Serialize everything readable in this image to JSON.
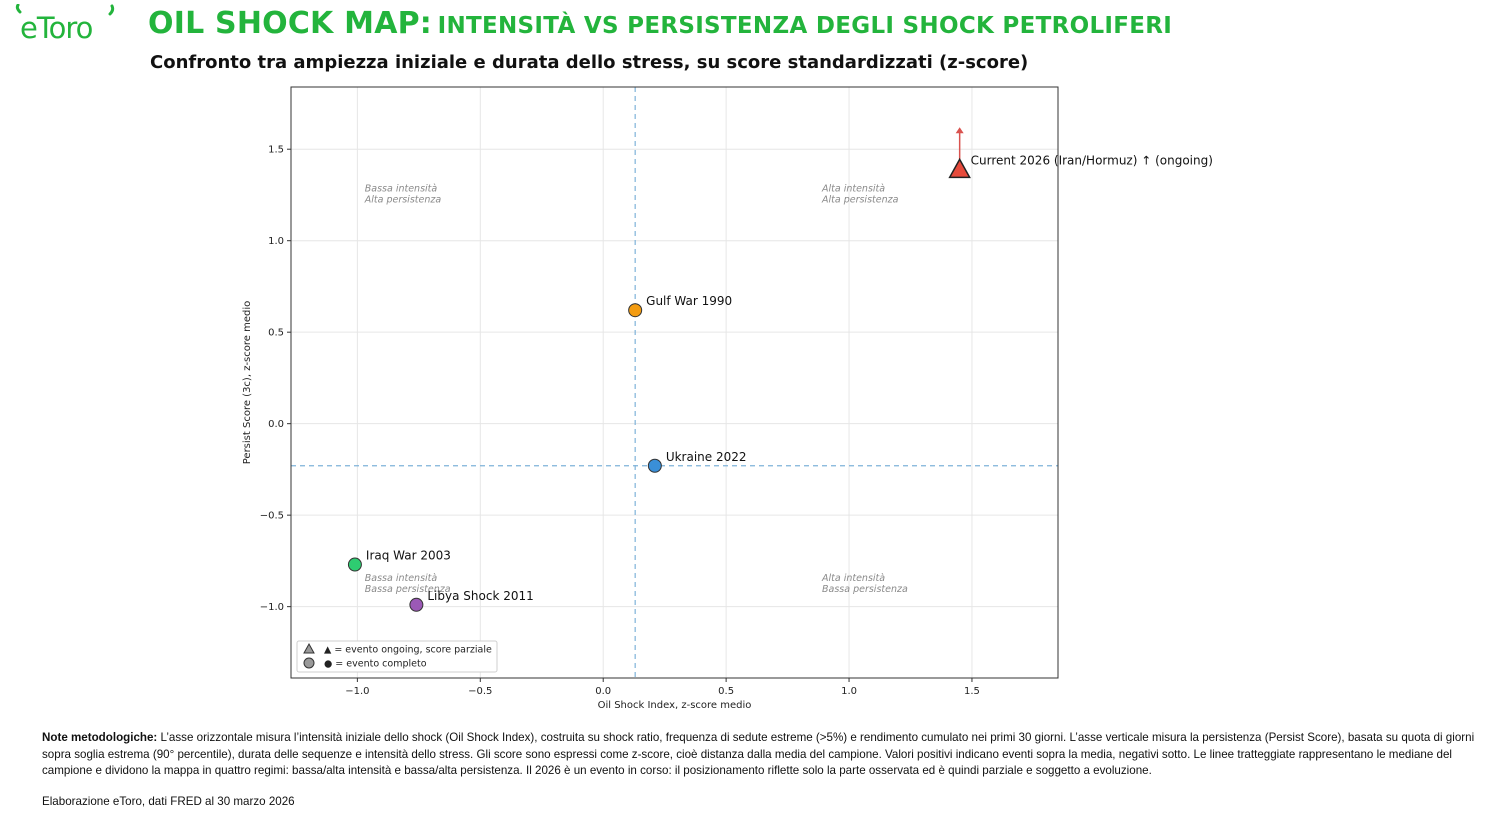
{
  "header": {
    "brand": "eToro",
    "title_main": "OIL SHOCK MAP:",
    "title_rest": "INTENSITÀ VS PERSISTENZA DEGLI SHOCK PETROLIFERI",
    "subtitle": "Confronto tra ampiezza iniziale e durata dello stress, su score standardizzati (z-score)"
  },
  "colors": {
    "brand_green": "#23b43c",
    "median_line": "#7fb2d9",
    "grid": "#e6e6e6",
    "arrow": "#d9534f"
  },
  "chart_data": {
    "type": "scatter",
    "title": "",
    "xlabel": "Oil Shock Index, z-score medio",
    "ylabel": "Persist Score (3c), z-score medio",
    "xlim": [
      -1.27,
      1.85
    ],
    "ylim": [
      -1.39,
      1.84
    ],
    "xticks": [
      -1.0,
      -0.5,
      0.0,
      0.5,
      1.0,
      1.5
    ],
    "xtick_labels": [
      "−1.0",
      "−0.5",
      "0.0",
      "0.5",
      "1.0",
      "1.5"
    ],
    "yticks": [
      -1.0,
      -0.5,
      0.0,
      0.5,
      1.0,
      1.5
    ],
    "ytick_labels": [
      "−1.0",
      "−0.5",
      "0.0",
      "0.5",
      "1.0",
      "1.5"
    ],
    "grid": true,
    "median_x": 0.13,
    "median_y": -0.23,
    "points": [
      {
        "label": "Current 2026 (Iran/Hormuz) ↑ (ongoing)",
        "x": 1.45,
        "y": 1.39,
        "marker": "triangle",
        "color": "#e64b3c",
        "status": "ongoing",
        "arrow_to_y": 1.62
      },
      {
        "label": "Gulf War 1990",
        "x": 0.13,
        "y": 0.62,
        "marker": "circle",
        "color": "#f39c12",
        "status": "complete"
      },
      {
        "label": "Ukraine 2022",
        "x": 0.21,
        "y": -0.23,
        "marker": "circle",
        "color": "#3a8fd8",
        "status": "complete"
      },
      {
        "label": "Iraq War 2003",
        "x": -1.01,
        "y": -0.77,
        "marker": "circle",
        "color": "#2ecc71",
        "status": "complete"
      },
      {
        "label": "Libya Shock 2011",
        "x": -0.76,
        "y": -0.99,
        "marker": "circle",
        "color": "#9b59b6",
        "status": "complete"
      }
    ],
    "quadrant_labels": [
      {
        "line1": "Bassa intensità",
        "line2": "Alta persistenza",
        "x": -0.97,
        "y": 1.27
      },
      {
        "line1": "Alta intensità",
        "line2": "Alta persistenza",
        "x": 0.89,
        "y": 1.27
      },
      {
        "line1": "Bassa intensità",
        "line2": "Bassa persistenza",
        "x": -0.97,
        "y": -0.86
      },
      {
        "line1": "Alta intensità",
        "line2": "Bassa persistenza",
        "x": 0.89,
        "y": -0.86
      }
    ],
    "legend": {
      "position": "lower-left",
      "entries": [
        {
          "marker": "triangle",
          "text": "▲ = evento ongoing, score parziale"
        },
        {
          "marker": "circle",
          "text": "● = evento completo"
        }
      ]
    }
  },
  "notes": {
    "heading": "Note metodologiche:",
    "body": "L’asse orizzontale misura l’intensità iniziale dello shock (Oil Shock Index), costruita su shock ratio, frequenza di sedute estreme (>5%) e rendimento cumulato nei primi 30 giorni. L’asse verticale misura la persistenza (Persist Score), basata su quota di giorni sopra soglia estrema (90° percentile), durata delle sequenze e intensità dello stress. Gli score sono espressi come z-score, cioè distanza dalla media del campione. Valori positivi indicano eventi sopra la media, negativi sotto. Le linee tratteggiate rappresentano le mediane del campione e dividono la mappa in quattro regimi: bassa/alta intensità e bassa/alta persistenza. Il 2026 è un evento in corso: il posizionamento riflette solo la parte osservata ed è quindi parziale e soggetto a evoluzione."
  },
  "source": "Elaborazione eToro, dati FRED al 30 marzo 2026"
}
